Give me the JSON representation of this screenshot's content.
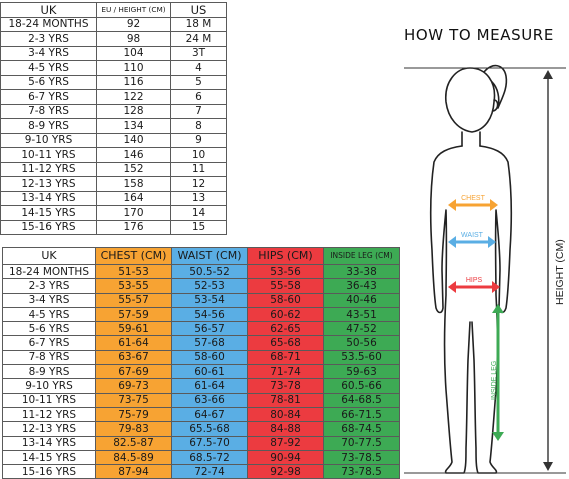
{
  "size_table": {
    "headers": [
      "UK",
      "EU / HEIGHT (CM)",
      "US"
    ],
    "rows": [
      [
        "18-24 MONTHS",
        "92",
        "18 M"
      ],
      [
        "2-3 YRS",
        "98",
        "24 M"
      ],
      [
        "3-4 YRS",
        "104",
        "3T"
      ],
      [
        "4-5 YRS",
        "110",
        "4"
      ],
      [
        "5-6 YRS",
        "116",
        "5"
      ],
      [
        "6-7 YRS",
        "122",
        "6"
      ],
      [
        "7-8 YRS",
        "128",
        "7"
      ],
      [
        "8-9 YRS",
        "134",
        "8"
      ],
      [
        "9-10 YRS",
        "140",
        "9"
      ],
      [
        "10-11 YRS",
        "146",
        "10"
      ],
      [
        "11-12 YRS",
        "152",
        "11"
      ],
      [
        "12-13 YRS",
        "158",
        "12"
      ],
      [
        "13-14 YRS",
        "164",
        "13"
      ],
      [
        "14-15 YRS",
        "170",
        "14"
      ],
      [
        "15-16 YRS",
        "176",
        "15"
      ]
    ]
  },
  "measure_table": {
    "headers": [
      "UK",
      "CHEST (CM)",
      "WAIST (CM)",
      "HIPS (CM)",
      "INSIDE LEG (CM)"
    ],
    "rows": [
      [
        "18-24 MONTHS",
        "51-53",
        "50.5-52",
        "53-56",
        "33-38"
      ],
      [
        "2-3 YRS",
        "53-55",
        "52-53",
        "55-58",
        "36-43"
      ],
      [
        "3-4 YRS",
        "55-57",
        "53-54",
        "58-60",
        "40-46"
      ],
      [
        "4-5 YRS",
        "57-59",
        "54-56",
        "60-62",
        "43-51"
      ],
      [
        "5-6 YRS",
        "59-61",
        "56-57",
        "62-65",
        "47-52"
      ],
      [
        "6-7 YRS",
        "61-64",
        "57-68",
        "65-68",
        "50-56"
      ],
      [
        "7-8 YRS",
        "63-67",
        "58-60",
        "68-71",
        "53.5-60"
      ],
      [
        "8-9 YRS",
        "67-69",
        "60-61",
        "71-74",
        "59-63"
      ],
      [
        "9-10 YRS",
        "69-73",
        "61-64",
        "73-78",
        "60.5-66"
      ],
      [
        "10-11 YRS",
        "73-75",
        "63-66",
        "78-81",
        "64-68.5"
      ],
      [
        "11-12 YRS",
        "75-79",
        "64-67",
        "80-84",
        "66-71.5"
      ],
      [
        "12-13 YRS",
        "79-83",
        "65.5-68",
        "84-88",
        "68-74.5"
      ],
      [
        "13-14 YRS",
        "82.5-87",
        "67.5-70",
        "87-92",
        "70-77.5"
      ],
      [
        "14-15 YRS",
        "84.5-89",
        "68.5-72",
        "90-94",
        "73-78.5"
      ],
      [
        "15-16 YRS",
        "87-94",
        "72-74",
        "92-98",
        "73-78.5"
      ]
    ]
  },
  "guide": {
    "title": "HOW TO MEASURE",
    "chest_label": "CHEST",
    "waist_label": "WAIST",
    "hips_label": "HIPS",
    "inside_leg_label": "INSIDE LEG",
    "height_label": "HEIGHT (CM)"
  },
  "colors": {
    "chest": "#f7a333",
    "waist": "#5aaee4",
    "hips": "#ec3b40",
    "inside_leg": "#3daa54"
  }
}
